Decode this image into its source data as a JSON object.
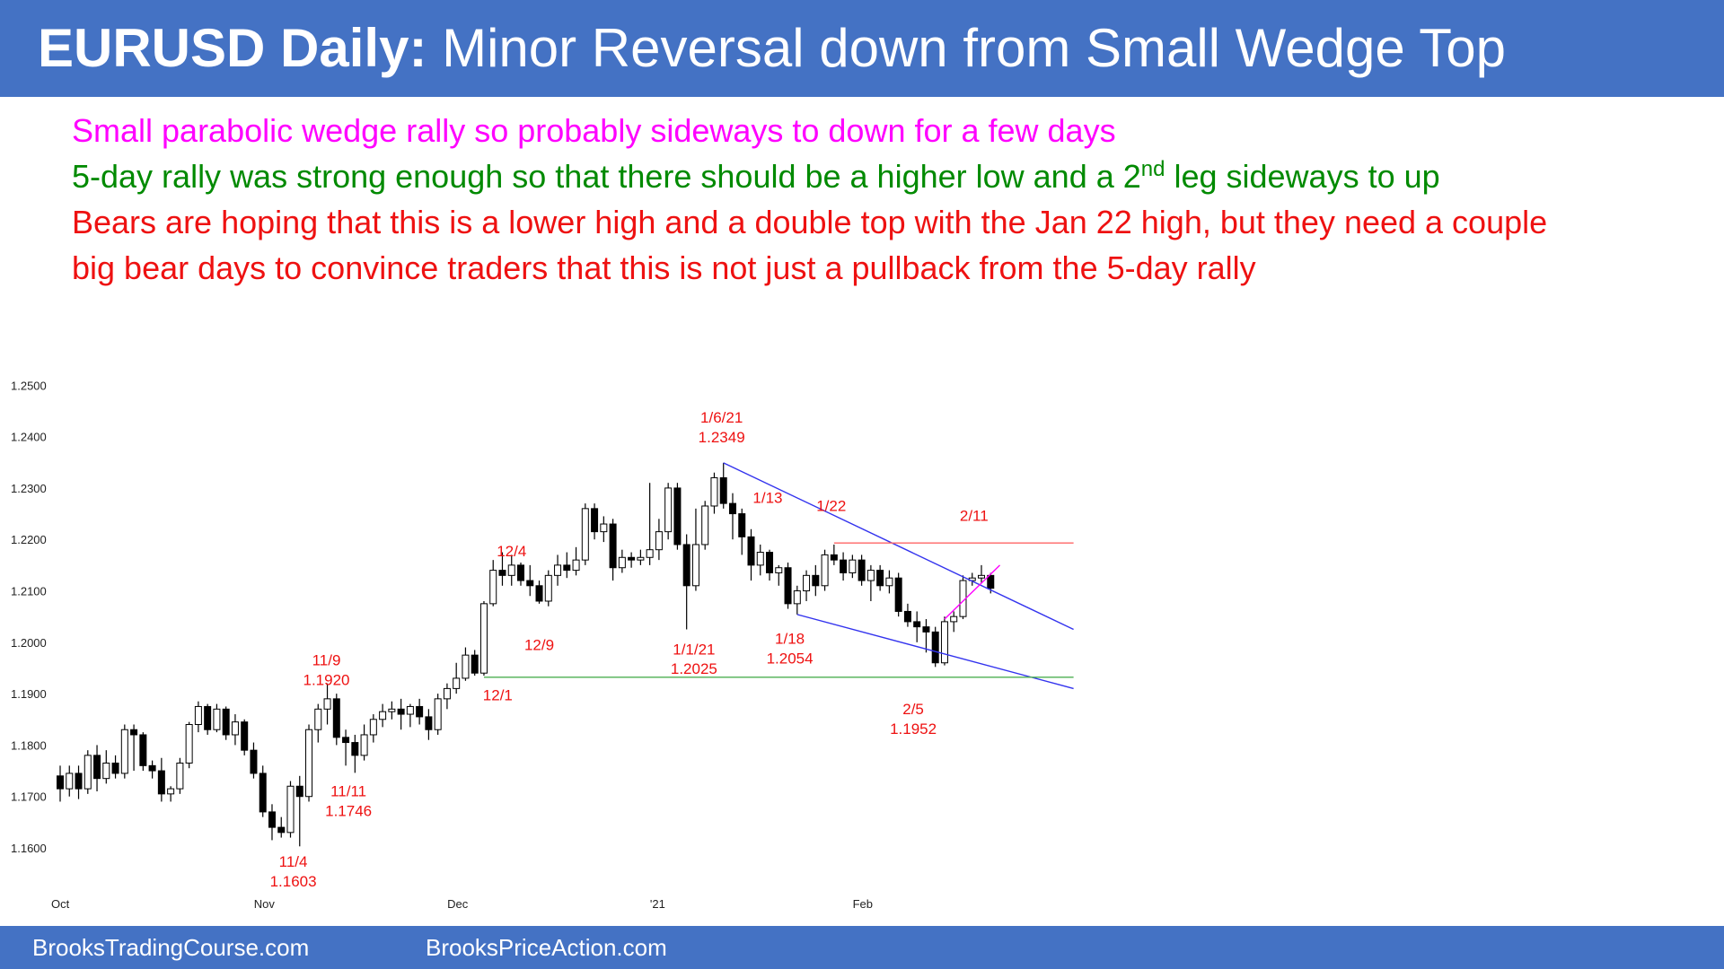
{
  "header": {
    "title_bold": "EURUSD Daily:",
    "title_rest": " Minor Reversal down from Small Wedge Top"
  },
  "notes": {
    "line1": "Small parabolic wedge rally so probably sideways to down for a few days",
    "line2_pre": "5-day rally was strong enough so that there should be a higher low and a 2",
    "line2_sup": "nd",
    "line2_post": " leg sideways to up",
    "line3": "Bears are hoping that this is a lower high and a double top with the Jan 22 high, but they need a couple",
    "line4": "big bear days to convince traders that this is not just a pullback from the 5-day rally",
    "colors": {
      "line1": "#ff00ff",
      "line2": "#008a00",
      "line3": "#ee1111",
      "line4": "#ee1111"
    }
  },
  "footer": {
    "left": "BrooksTradingCourse.com",
    "right": "BrooksPriceAction.com"
  },
  "chart_data": {
    "type": "candlestick",
    "ylim": [
      1.155,
      1.2525
    ],
    "y_ticks": [
      "1.2500",
      "1.2400",
      "1.2300",
      "1.2200",
      "1.2100",
      "1.2000",
      "1.1900",
      "1.1800",
      "1.1700",
      "1.1600"
    ],
    "x_ticks": [
      {
        "label": "Oct",
        "index": 0
      },
      {
        "label": "Nov",
        "index": 22
      },
      {
        "label": "Dec",
        "index": 43
      },
      {
        "label": "'21",
        "index": 65
      },
      {
        "label": "Feb",
        "index": 87
      }
    ],
    "colors": {
      "bull": "#ffffff",
      "bear": "#000000",
      "annotation": "#ee1111",
      "trendline": "#3333ee",
      "support": "#4caf50",
      "resistance": "#ff6666",
      "wedge": "#ff00ff"
    },
    "candles": [
      [
        1.174,
        1.176,
        1.169,
        1.1715
      ],
      [
        1.1715,
        1.176,
        1.17,
        1.1745
      ],
      [
        1.1745,
        1.176,
        1.1695,
        1.1715
      ],
      [
        1.1715,
        1.179,
        1.1705,
        1.178
      ],
      [
        1.178,
        1.18,
        1.171,
        1.1735
      ],
      [
        1.1735,
        1.179,
        1.1725,
        1.1765
      ],
      [
        1.1765,
        1.178,
        1.1735,
        1.1745
      ],
      [
        1.1745,
        1.184,
        1.1735,
        1.183
      ],
      [
        1.183,
        1.184,
        1.175,
        1.182
      ],
      [
        1.182,
        1.1825,
        1.175,
        1.176
      ],
      [
        1.176,
        1.177,
        1.1735,
        1.175
      ],
      [
        1.175,
        1.1775,
        1.169,
        1.1705
      ],
      [
        1.1705,
        1.172,
        1.169,
        1.1715
      ],
      [
        1.1715,
        1.1775,
        1.1705,
        1.1765
      ],
      [
        1.1765,
        1.1845,
        1.1755,
        1.184
      ],
      [
        1.184,
        1.1885,
        1.1825,
        1.1875
      ],
      [
        1.1875,
        1.188,
        1.182,
        1.183
      ],
      [
        1.183,
        1.188,
        1.1825,
        1.187
      ],
      [
        1.187,
        1.1875,
        1.181,
        1.182
      ],
      [
        1.182,
        1.186,
        1.18,
        1.1845
      ],
      [
        1.1845,
        1.185,
        1.178,
        1.179
      ],
      [
        1.179,
        1.1805,
        1.1735,
        1.1745
      ],
      [
        1.1745,
        1.176,
        1.166,
        1.167
      ],
      [
        1.167,
        1.1685,
        1.1615,
        1.164
      ],
      [
        1.164,
        1.166,
        1.162,
        1.163
      ],
      [
        1.163,
        1.173,
        1.162,
        1.172
      ],
      [
        1.172,
        1.174,
        1.1603,
        1.17
      ],
      [
        1.17,
        1.184,
        1.169,
        1.183
      ],
      [
        1.183,
        1.188,
        1.1805,
        1.187
      ],
      [
        1.187,
        1.192,
        1.184,
        1.189
      ],
      [
        1.189,
        1.19,
        1.18,
        1.1815
      ],
      [
        1.1815,
        1.183,
        1.176,
        1.1805
      ],
      [
        1.1805,
        1.182,
        1.1746,
        1.178
      ],
      [
        1.178,
        1.184,
        1.177,
        1.182
      ],
      [
        1.182,
        1.186,
        1.1805,
        1.185
      ],
      [
        1.185,
        1.188,
        1.1835,
        1.1865
      ],
      [
        1.1865,
        1.1885,
        1.185,
        1.187
      ],
      [
        1.187,
        1.189,
        1.183,
        1.186
      ],
      [
        1.186,
        1.188,
        1.1835,
        1.1875
      ],
      [
        1.1875,
        1.189,
        1.184,
        1.1855
      ],
      [
        1.1855,
        1.187,
        1.181,
        1.183
      ],
      [
        1.183,
        1.19,
        1.182,
        1.189
      ],
      [
        1.189,
        1.192,
        1.187,
        1.191
      ],
      [
        1.191,
        1.196,
        1.19,
        1.193
      ],
      [
        1.193,
        1.199,
        1.1925,
        1.1975
      ],
      [
        1.1975,
        1.1985,
        1.1935,
        1.194
      ],
      [
        1.194,
        1.208,
        1.1935,
        1.2075
      ],
      [
        1.2075,
        1.216,
        1.207,
        1.214
      ],
      [
        1.214,
        1.2175,
        1.211,
        1.213
      ],
      [
        1.213,
        1.217,
        1.211,
        1.215
      ],
      [
        1.215,
        1.2155,
        1.211,
        1.212
      ],
      [
        1.212,
        1.215,
        1.209,
        1.211
      ],
      [
        1.211,
        1.212,
        1.2075,
        1.208
      ],
      [
        1.208,
        1.214,
        1.207,
        1.213
      ],
      [
        1.213,
        1.217,
        1.211,
        1.215
      ],
      [
        1.215,
        1.2175,
        1.2125,
        1.214
      ],
      [
        1.214,
        1.2185,
        1.213,
        1.216
      ],
      [
        1.216,
        1.227,
        1.215,
        1.226
      ],
      [
        1.226,
        1.227,
        1.22,
        1.2215
      ],
      [
        1.2215,
        1.2245,
        1.2195,
        1.223
      ],
      [
        1.223,
        1.224,
        1.212,
        1.2145
      ],
      [
        1.2145,
        1.218,
        1.2135,
        1.2165
      ],
      [
        1.2165,
        1.2175,
        1.2145,
        1.216
      ],
      [
        1.216,
        1.218,
        1.215,
        1.2165
      ],
      [
        1.2165,
        1.231,
        1.215,
        1.218
      ],
      [
        1.218,
        1.224,
        1.216,
        1.2215
      ],
      [
        1.2215,
        1.231,
        1.22,
        1.23
      ],
      [
        1.23,
        1.231,
        1.218,
        1.219
      ],
      [
        1.219,
        1.221,
        1.2025,
        1.211
      ],
      [
        1.211,
        1.226,
        1.21,
        1.219
      ],
      [
        1.219,
        1.2275,
        1.218,
        1.2265
      ],
      [
        1.2265,
        1.233,
        1.225,
        1.232
      ],
      [
        1.232,
        1.2349,
        1.226,
        1.227
      ],
      [
        1.227,
        1.229,
        1.22,
        1.225
      ],
      [
        1.225,
        1.226,
        1.217,
        1.2205
      ],
      [
        1.2205,
        1.222,
        1.212,
        1.215
      ],
      [
        1.215,
        1.219,
        1.213,
        1.2175
      ],
      [
        1.2175,
        1.218,
        1.212,
        1.2135
      ],
      [
        1.2135,
        1.215,
        1.211,
        1.2145
      ],
      [
        1.2145,
        1.2155,
        1.2065,
        1.2075
      ],
      [
        1.2075,
        1.211,
        1.2054,
        1.21
      ],
      [
        1.21,
        1.214,
        1.208,
        1.213
      ],
      [
        1.213,
        1.215,
        1.209,
        1.211
      ],
      [
        1.211,
        1.218,
        1.21,
        1.217
      ],
      [
        1.217,
        1.219,
        1.215,
        1.216
      ],
      [
        1.216,
        1.2175,
        1.212,
        1.2135
      ],
      [
        1.2135,
        1.217,
        1.2125,
        1.216
      ],
      [
        1.216,
        1.217,
        1.211,
        1.212
      ],
      [
        1.212,
        1.215,
        1.208,
        1.214
      ],
      [
        1.214,
        1.215,
        1.21,
        1.211
      ],
      [
        1.211,
        1.214,
        1.2095,
        1.2125
      ],
      [
        1.2125,
        1.2135,
        1.205,
        1.206
      ],
      [
        1.206,
        1.2075,
        1.203,
        1.204
      ],
      [
        1.204,
        1.206,
        1.2,
        1.203
      ],
      [
        1.203,
        1.2045,
        1.198,
        1.202
      ],
      [
        1.202,
        1.203,
        1.1952,
        1.196
      ],
      [
        1.196,
        1.205,
        1.1955,
        1.204
      ],
      [
        1.204,
        1.206,
        1.202,
        1.205
      ],
      [
        1.205,
        1.213,
        1.2045,
        1.212
      ],
      [
        1.212,
        1.2135,
        1.211,
        1.2125
      ],
      [
        1.2125,
        1.215,
        1.2115,
        1.213
      ],
      [
        1.213,
        1.2135,
        1.2095,
        1.2105
      ]
    ],
    "lines": [
      {
        "name": "upper-trendline",
        "color": "trendline",
        "from": [
          72,
          1.2349
        ],
        "to": [
          110,
          1.2025
        ]
      },
      {
        "name": "lower-trendline",
        "color": "trendline",
        "from": [
          80,
          1.2054
        ],
        "to": [
          110,
          1.191
        ]
      },
      {
        "name": "support-line",
        "color": "support",
        "from": [
          46,
          1.1932
        ],
        "to": [
          110,
          1.1932
        ]
      },
      {
        "name": "resistance-line",
        "color": "resistance",
        "from": [
          84,
          1.2193
        ],
        "to": [
          110,
          1.2193
        ]
      },
      {
        "name": "wedge-line",
        "color": "wedge",
        "from": [
          96,
          1.2045
        ],
        "to": [
          102,
          1.215
        ]
      }
    ],
    "annotations": [
      {
        "text": "11/9",
        "x": 28.9,
        "y": 1.1955
      },
      {
        "text": "1.1920",
        "x": 28.9,
        "y": 1.1917
      },
      {
        "text": "11/11",
        "x": 31.3,
        "y": 1.17
      },
      {
        "text": "1.1746",
        "x": 31.3,
        "y": 1.1662
      },
      {
        "text": "11/4",
        "x": 25.3,
        "y": 1.1563
      },
      {
        "text": "1.1603",
        "x": 25.3,
        "y": 1.1525
      },
      {
        "text": "12/4",
        "x": 49.0,
        "y": 1.2167
      },
      {
        "text": "12/9",
        "x": 52.0,
        "y": 1.1985
      },
      {
        "text": "12/1",
        "x": 47.5,
        "y": 1.1887
      },
      {
        "text": "1/6/21",
        "x": 71.8,
        "y": 1.2427
      },
      {
        "text": "1.2349",
        "x": 71.8,
        "y": 1.2389
      },
      {
        "text": "1/13",
        "x": 76.8,
        "y": 1.2271
      },
      {
        "text": "1/22",
        "x": 83.7,
        "y": 1.2255
      },
      {
        "text": "2/11",
        "x": 99.2,
        "y": 1.2236
      },
      {
        "text": "1/1/21",
        "x": 68.8,
        "y": 1.1976
      },
      {
        "text": "1.2025",
        "x": 68.8,
        "y": 1.1939
      },
      {
        "text": "1/18",
        "x": 79.2,
        "y": 1.1997
      },
      {
        "text": "1.2054",
        "x": 79.2,
        "y": 1.1959
      },
      {
        "text": "2/5",
        "x": 92.6,
        "y": 1.186
      },
      {
        "text": "1.1952",
        "x": 92.6,
        "y": 1.1822
      }
    ]
  }
}
